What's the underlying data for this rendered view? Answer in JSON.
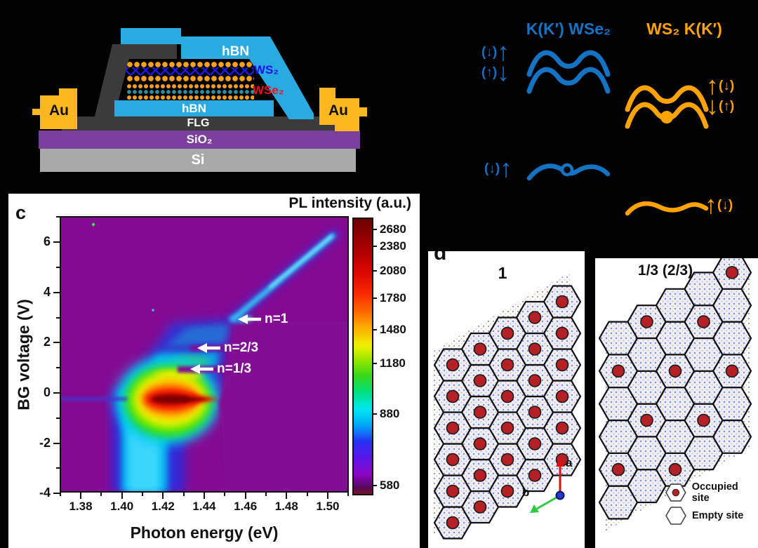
{
  "figure": {
    "background": "#000000"
  },
  "panel_a": {
    "name": "device schematic",
    "layers": {
      "hbn_top": "hBN",
      "ws2": "WS₂",
      "wse2": "WSe₂",
      "hbn_bottom": "hBN",
      "flg": "FLG",
      "sio2": "SiO₂",
      "si": "Si",
      "au_left": "Au",
      "au_right": "Au"
    },
    "colors": {
      "hbn": "#29abe2",
      "flg": "#3b3b3b",
      "sio2": "#7b3f9d",
      "si": "#a9a9a9",
      "au": "#fcb81e",
      "ws2_label": "#1a12e8",
      "wse2_label": "#ee1111"
    }
  },
  "panel_b": {
    "left_title": "K(K′) WSe₂",
    "right_title": "WS₂ K(K′)",
    "blue": "#1573c4",
    "orange": "#ffa300",
    "wse2_conduction_spins": [
      {
        "paren": "(↓)",
        "arrow": "↑"
      },
      {
        "paren": "(↑)",
        "arrow": "↓"
      }
    ],
    "wse2_valence_spin": {
      "paren": "(↓)",
      "arrow": "↑"
    },
    "ws2_conduction_spins": [
      {
        "arrow": "↑",
        "paren": "(↓)"
      },
      {
        "arrow": "↓",
        "paren": "(↑)"
      }
    ],
    "ws2_valence_spin": {
      "arrow": "↑",
      "paren": "(↓)"
    }
  },
  "panel_c": {
    "label": "c",
    "title": "PL intensity (a.u.)",
    "xlabel": "Photon energy (eV)",
    "ylabel": "BG voltage (V)",
    "annotations": [
      {
        "text": "n=1",
        "voltage": 2.9,
        "photon_energy_eV": 1.468
      },
      {
        "text": "n=2/3",
        "voltage": 1.8,
        "photon_energy_eV": 1.447
      },
      {
        "text": "n=1/3",
        "voltage": 0.95,
        "photon_energy_eV": 1.447
      }
    ]
  },
  "chart_data": {
    "type": "heatmap",
    "title": "PL intensity (a.u.)",
    "xlabel": "Photon energy (eV)",
    "ylabel": "BG voltage (V)",
    "xlim": [
      1.37,
      1.51
    ],
    "ylim": [
      -4,
      7
    ],
    "xticks": [
      "1.38",
      "1.40",
      "1.42",
      "1.44",
      "1.46",
      "1.48",
      "1.50"
    ],
    "yticks": [
      "6",
      "4",
      "2",
      "0",
      "-2",
      "-4"
    ],
    "colorbar_ticks": [
      "2680",
      "2380",
      "2080",
      "1780",
      "1480",
      "1180",
      "880",
      "580"
    ],
    "colorbar_scale": "nonlinear",
    "colorbar_colors_top_to_bottom": [
      "#6e0000",
      "#b60000",
      "#fa2800",
      "#ffa800",
      "#f0f000",
      "#38d818",
      "#00e8f0",
      "#00a8f8",
      "#2830f4",
      "#5a14e8",
      "#8d06c4",
      "#55085c",
      "#74122a"
    ],
    "background_color": "#830b94",
    "features": [
      {
        "name": "neutral-exciton peak",
        "photon_energy_eV": 1.424,
        "voltage": -0.2,
        "intensity": 2680
      },
      {
        "name": "charged-exciton column",
        "photon_energy_eV_range": [
          1.398,
          1.432
        ],
        "voltage_range": [
          -4,
          0
        ],
        "intensity": 900
      },
      {
        "name": "hole-doped cloud",
        "photon_energy_eV_range": [
          1.403,
          1.452
        ],
        "voltage_range": [
          0.2,
          2.8
        ],
        "intensity": 850
      },
      {
        "name": "bright spot at n=2/3 edge",
        "photon_energy_eV": 1.444,
        "voltage": 1.85,
        "intensity": 1300
      },
      {
        "name": "electron-doped diagonal branch",
        "from": [
          1.452,
          2.9
        ],
        "to": [
          1.503,
          6.3
        ],
        "intensity": 900
      },
      {
        "name": "plateau n=1",
        "voltage": 2.9
      },
      {
        "name": "plateau n=2/3",
        "voltage": 1.8
      },
      {
        "name": "plateau n=1/3",
        "voltage": 0.95
      }
    ]
  },
  "panel_d": {
    "label": "d",
    "left_title": "1",
    "right_title": "1/3 (2/3)",
    "axis_a": "a",
    "axis_b": "b",
    "legend": {
      "occupied": "Occupied site",
      "empty": "Empty site"
    },
    "site_color": "#b52025",
    "left_grid": {
      "rows": 6,
      "cols": 5,
      "occupied": "all"
    },
    "right_grid": {
      "rows": 6,
      "cols": 5,
      "occupied_cells": [
        [
          1,
          0
        ],
        [
          4,
          0
        ],
        [
          2,
          1
        ],
        [
          5,
          1
        ],
        [
          0,
          2
        ],
        [
          3,
          2
        ],
        [
          1,
          3
        ],
        [
          4,
          3
        ],
        [
          2,
          4
        ],
        [
          5,
          4
        ]
      ]
    }
  }
}
